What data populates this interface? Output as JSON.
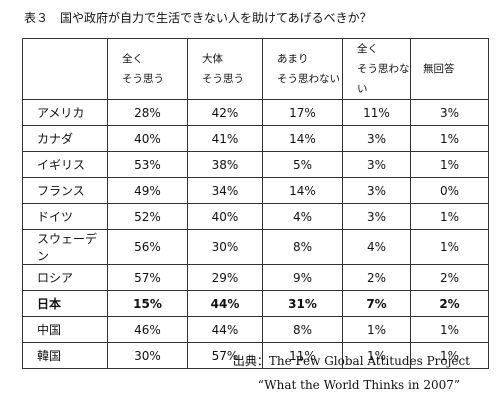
{
  "title": "表３　国や政府が自力で生活できない人を助けてあげるべきか？",
  "table": {
    "header": [
      [
        "全く",
        "そう思う"
      ],
      [
        "大体",
        "そう思う"
      ],
      [
        "あまり",
        "そう思わない"
      ],
      [
        "全く",
        "そう思わない"
      ],
      [
        "無回答"
      ]
    ],
    "rows": [
      [
        "アメリカ",
        "28%",
        "42%",
        "17%",
        "11%",
        "3%"
      ],
      [
        "カナダ",
        "40%",
        "41%",
        "14%",
        "3%",
        "1%"
      ],
      [
        "イギリス",
        "53%",
        "38%",
        "5%",
        "3%",
        "1%"
      ],
      [
        "フランス",
        "49%",
        "34%",
        "14%",
        "3%",
        "0%"
      ],
      [
        "ドイツ",
        "52%",
        "40%",
        "4%",
        "3%",
        "1%"
      ],
      [
        "スウェーデン",
        "56%",
        "30%",
        "8%",
        "4%",
        "1%"
      ],
      [
        "ロシア",
        "57%",
        "29%",
        "9%",
        "2%",
        "2%"
      ],
      [
        "日本",
        "15%",
        "44%",
        "31%",
        "7%",
        "2%"
      ],
      [
        "中国",
        "46%",
        "44%",
        "8%",
        "1%",
        "1%"
      ],
      [
        "韓国",
        "30%",
        "57%",
        "11%",
        "1%",
        "1%"
      ]
    ]
  },
  "source": [
    "出典：The Pew Global Attitudes Project",
    "“What the World Thinks in 2007”"
  ]
}
